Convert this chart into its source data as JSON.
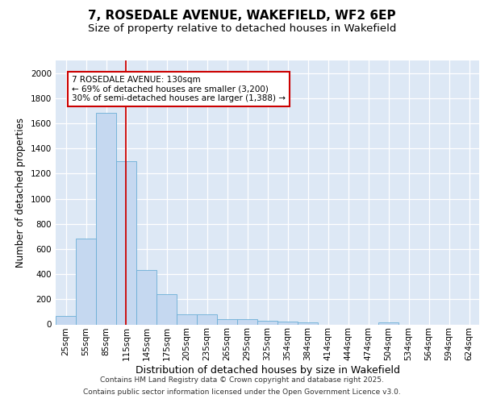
{
  "title1": "7, ROSEDALE AVENUE, WAKEFIELD, WF2 6EP",
  "title2": "Size of property relative to detached houses in Wakefield",
  "xlabel": "Distribution of detached houses by size in Wakefield",
  "ylabel": "Number of detached properties",
  "categories": [
    "25sqm",
    "55sqm",
    "85sqm",
    "115sqm",
    "145sqm",
    "175sqm",
    "205sqm",
    "235sqm",
    "265sqm",
    "295sqm",
    "325sqm",
    "354sqm",
    "384sqm",
    "414sqm",
    "444sqm",
    "474sqm",
    "504sqm",
    "534sqm",
    "564sqm",
    "594sqm",
    "624sqm"
  ],
  "values": [
    65,
    680,
    1680,
    1300,
    430,
    240,
    80,
    80,
    40,
    40,
    30,
    20,
    15,
    0,
    0,
    0,
    15,
    0,
    0,
    0,
    0
  ],
  "bar_color": "#c5d8f0",
  "bar_edge_color": "#6baed6",
  "background_color": "#dde8f5",
  "grid_color": "#ffffff",
  "red_line_x": 2.97,
  "annotation_text": "7 ROSEDALE AVENUE: 130sqm\n← 69% of detached houses are smaller (3,200)\n30% of semi-detached houses are larger (1,388) →",
  "annotation_box_color": "#ffffff",
  "annotation_box_edge": "#cc0000",
  "ylim": [
    0,
    2100
  ],
  "yticks": [
    0,
    200,
    400,
    600,
    800,
    1000,
    1200,
    1400,
    1600,
    1800,
    2000
  ],
  "footer1": "Contains HM Land Registry data © Crown copyright and database right 2025.",
  "footer2": "Contains public sector information licensed under the Open Government Licence v3.0.",
  "title_fontsize": 11,
  "subtitle_fontsize": 9.5,
  "tick_fontsize": 7.5,
  "ylabel_fontsize": 8.5,
  "xlabel_fontsize": 9,
  "ann_fontsize": 7.5,
  "footer_fontsize": 6.5
}
